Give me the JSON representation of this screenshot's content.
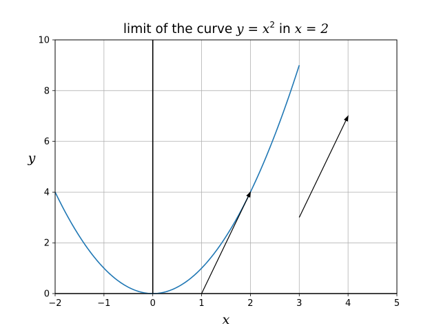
{
  "chart_data": {
    "type": "line",
    "title": {
      "prefix": "limit of the curve ",
      "math_var": "y",
      "math_eq": " = ",
      "math_base": "x",
      "math_exp": "2",
      "middle": " in ",
      "math_cond": "x = 2"
    },
    "xlabel": "x",
    "ylabel": "y",
    "xlim": [
      -2,
      5
    ],
    "ylim": [
      0,
      10
    ],
    "xticks": [
      -2,
      -1,
      0,
      1,
      2,
      3,
      4,
      5
    ],
    "yticks": [
      0,
      2,
      4,
      6,
      8,
      10
    ],
    "grid": true,
    "series": [
      {
        "function": "y = x^2",
        "x_range": [
          -2,
          3
        ],
        "color": "#1f77b4"
      }
    ],
    "arrows": [
      {
        "from": [
          1,
          0
        ],
        "to": [
          2,
          4
        ],
        "color": "#000000"
      },
      {
        "from": [
          3,
          3
        ],
        "to": [
          4,
          7
        ],
        "color": "#000000"
      }
    ],
    "axis_lines": {
      "x_zero": true,
      "y_zero": true
    }
  }
}
